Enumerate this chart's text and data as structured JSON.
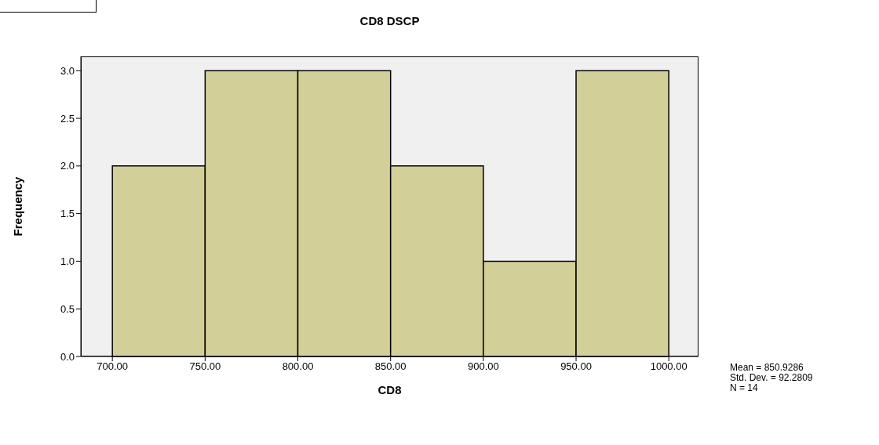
{
  "chart_data": {
    "type": "histogram",
    "title": "CD8 DSCP",
    "xlabel": "CD8",
    "ylabel": "Frequency",
    "bins": [
      700,
      750,
      800,
      850,
      900,
      950,
      1000
    ],
    "values": [
      2,
      3,
      3,
      2,
      1,
      3
    ],
    "color": "#d3cf99",
    "xlim": [
      683,
      1016
    ],
    "xticks": [
      {
        "value": 700,
        "label": "700.00"
      },
      {
        "value": 750,
        "label": "750.00"
      },
      {
        "value": 800,
        "label": "800.00"
      },
      {
        "value": 850,
        "label": "850.00"
      },
      {
        "value": 900,
        "label": "900.00"
      },
      {
        "value": 950,
        "label": "950.00"
      },
      {
        "value": 1000,
        "label": "1000.00"
      }
    ],
    "ylim": [
      0,
      3.15
    ],
    "yticks": [
      {
        "value": 0,
        "label": "0.0"
      },
      {
        "value": 0.5,
        "label": "0.5"
      },
      {
        "value": 1,
        "label": "1.0"
      },
      {
        "value": 1.5,
        "label": "1.5"
      },
      {
        "value": 2,
        "label": "2.0"
      },
      {
        "value": 2.5,
        "label": "2.5"
      },
      {
        "value": 3,
        "label": "3.0"
      }
    ],
    "grid": false,
    "annotations": [
      "Mean = 850.9286",
      "Std. Dev. = 92.2809",
      "N = 14"
    ]
  }
}
